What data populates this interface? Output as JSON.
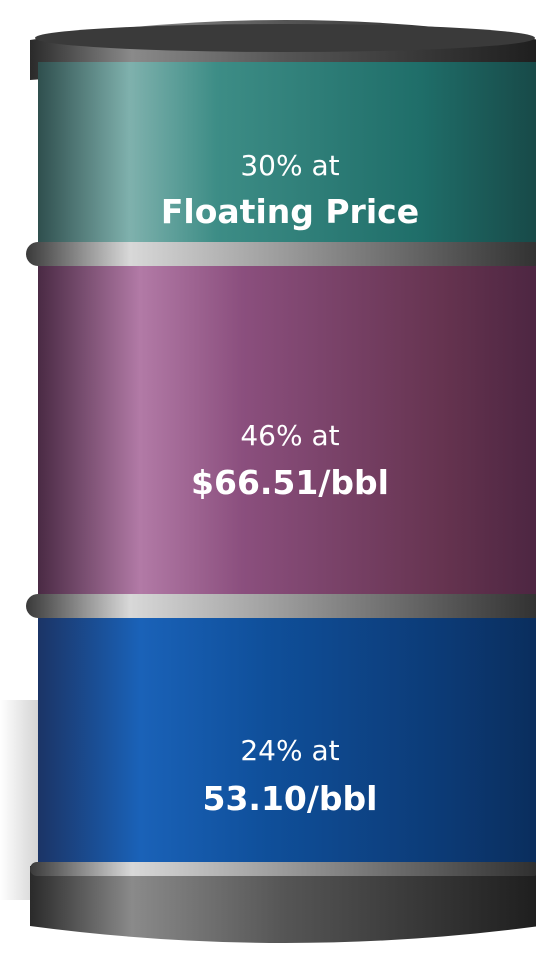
{
  "segments": [
    {
      "share": "30% at",
      "price": "Floating Price"
    },
    {
      "share": "46% at",
      "price": "$66.51/bbl"
    },
    {
      "share": "24% at",
      "price": "53.10/bbl"
    }
  ]
}
